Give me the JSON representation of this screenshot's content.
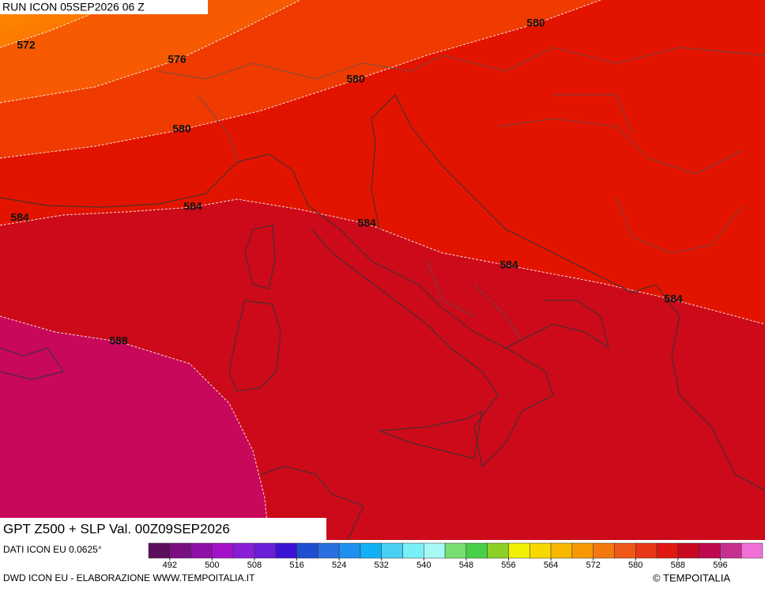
{
  "header": {
    "run": "RUN ICON 05SEP2026 06 Z"
  },
  "contour_labels": [
    572,
    576,
    580,
    580,
    580,
    584,
    584,
    584,
    584,
    584,
    588
  ],
  "footer": {
    "title": "GPT Z500 + SLP Val. 00Z09SEP2026",
    "source": "DATI ICON EU 0.0625°",
    "credit": "DWD ICON EU - ELABORAZIONE WWW.TEMPOITALIA.IT",
    "copyright": "© TEMPOITALIA"
  },
  "colorbar": {
    "range": [
      488,
      604
    ],
    "ticks": [
      492,
      500,
      508,
      516,
      524,
      532,
      540,
      548,
      556,
      564,
      572,
      580,
      588,
      596
    ],
    "colors": [
      "#5c0f5c",
      "#7a0f82",
      "#8f10a8",
      "#a412c8",
      "#8a1ed8",
      "#6a1ed8",
      "#3c12d4",
      "#1f4fd0",
      "#2a6fe0",
      "#1e90f0",
      "#14b0f4",
      "#4ad0f4",
      "#78f0f8",
      "#a8f8f8",
      "#78e070",
      "#48d048",
      "#8cd028",
      "#f0f000",
      "#f8d800",
      "#f8b800",
      "#f89800",
      "#f47810",
      "#f05818",
      "#e83818",
      "#e01810",
      "#c80820",
      "#c00850",
      "#c83090",
      "#f070d8"
    ]
  }
}
